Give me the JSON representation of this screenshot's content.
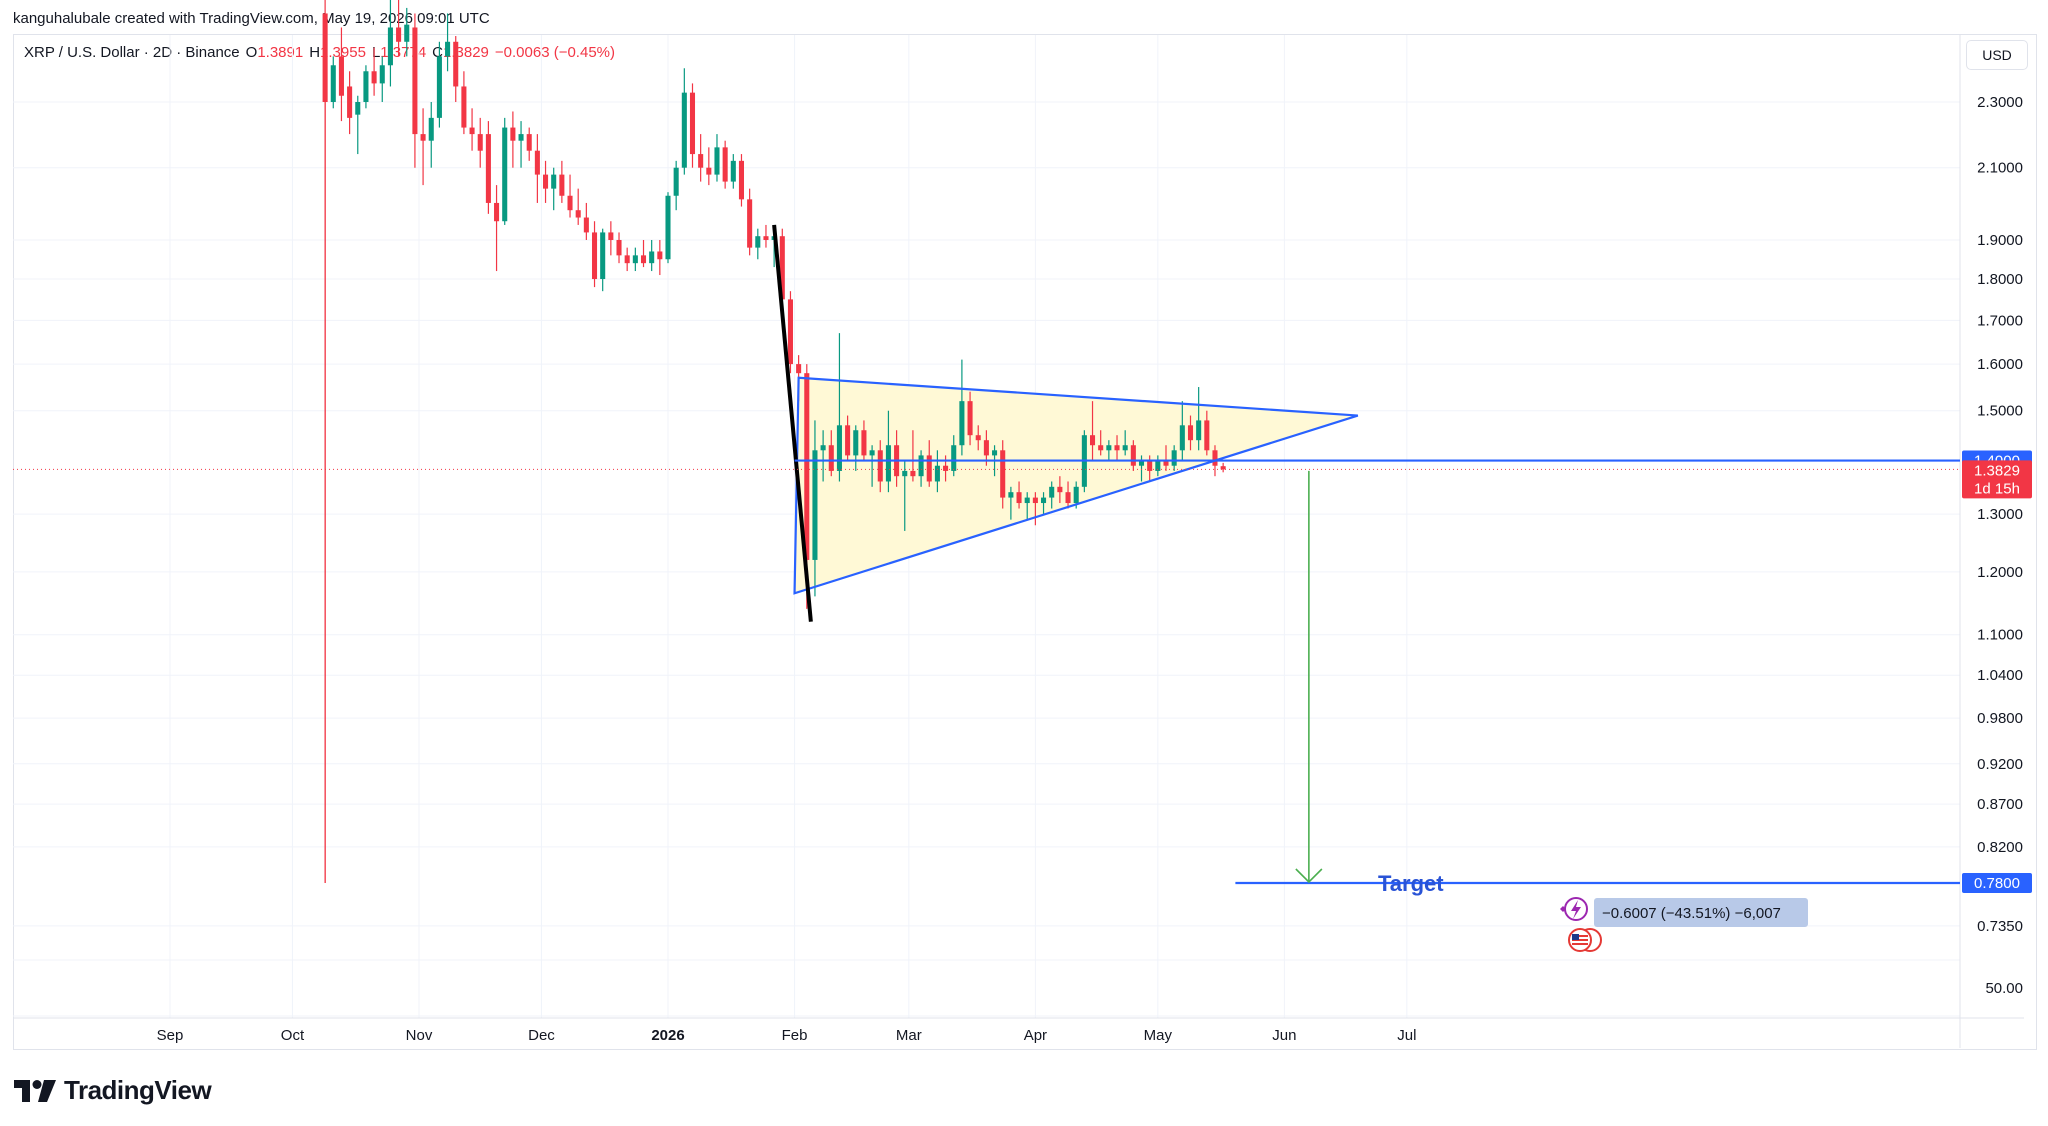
{
  "header": {
    "attribution": "kanguhalubale created with TradingView.com, May 19, 2026 09:01 UTC"
  },
  "legend": {
    "symbol": "XRP / U.S. Dollar · 2D · Binance",
    "open_label": "O",
    "open": "1.3891",
    "high_label": "H",
    "high": "1.3955",
    "low_label": "L",
    "low": "1.3774",
    "close_label": "C",
    "close": "1.3829",
    "change": "−0.0063 (−0.45%)"
  },
  "currency": "USD",
  "logo_text": "TradingView",
  "colors": {
    "up": "#089981",
    "down": "#f23645",
    "triangle_line": "#2962ff",
    "triangle_fill": "#fff9d6",
    "arrow": "#4caf50",
    "target_text": "#2953d6"
  },
  "icons": [
    "tradingview-logo-icon",
    "lightning-event-icon",
    "us-flag-icon"
  ],
  "chart_data": {
    "type": "candlestick",
    "symbol": "XRP / U.S. Dollar",
    "interval": "2D",
    "exchange": "Binance",
    "y_scale": "log",
    "grid": true,
    "x_axis_labels": [
      "Sep",
      "Oct",
      "Nov",
      "Dec",
      "2026",
      "Feb",
      "Mar",
      "Apr",
      "May",
      "Jun",
      "Jul"
    ],
    "y_axis_labels": [
      "2.3000",
      "2.1000",
      "1.9000",
      "1.8000",
      "1.7000",
      "1.6000",
      "1.5000",
      "1.3000",
      "1.2000",
      "1.1000",
      "1.0400",
      "0.9800",
      "0.9200",
      "0.8700",
      "0.8200",
      "0.7350",
      "50.00"
    ],
    "price_tags": [
      {
        "value": "1.4000",
        "kind": "level"
      },
      {
        "value": "1.3829",
        "kind": "last_price",
        "countdown": "1d 15h"
      },
      {
        "value": "0.7800",
        "kind": "target"
      }
    ],
    "annotation_target": "Target",
    "measure_label": "−0.6007 (−43.51%) −6,007",
    "candles": [
      {
        "d": "2025-10-09",
        "o": 2.6,
        "h": 2.7,
        "l": 0.78,
        "c": 2.3
      },
      {
        "d": "2025-10-11",
        "o": 2.3,
        "h": 2.45,
        "l": 2.28,
        "c": 2.42
      },
      {
        "d": "2025-10-13",
        "o": 2.45,
        "h": 2.55,
        "l": 2.24,
        "c": 2.32
      },
      {
        "d": "2025-10-15",
        "o": 2.35,
        "h": 2.4,
        "l": 2.2,
        "c": 2.25
      },
      {
        "d": "2025-10-17",
        "o": 2.26,
        "h": 2.32,
        "l": 2.14,
        "c": 2.3
      },
      {
        "d": "2025-10-19",
        "o": 2.3,
        "h": 2.42,
        "l": 2.28,
        "c": 2.4
      },
      {
        "d": "2025-10-21",
        "o": 2.4,
        "h": 2.48,
        "l": 2.32,
        "c": 2.36
      },
      {
        "d": "2025-10-23",
        "o": 2.36,
        "h": 2.45,
        "l": 2.3,
        "c": 2.42
      },
      {
        "d": "2025-10-25",
        "o": 2.42,
        "h": 2.65,
        "l": 2.35,
        "c": 2.55
      },
      {
        "d": "2025-10-27",
        "o": 2.55,
        "h": 2.7,
        "l": 2.45,
        "c": 2.5
      },
      {
        "d": "2025-10-29",
        "o": 2.5,
        "h": 2.62,
        "l": 2.45,
        "c": 2.56
      },
      {
        "d": "2025-10-31",
        "o": 2.55,
        "h": 2.6,
        "l": 2.1,
        "c": 2.2
      },
      {
        "d": "2025-11-02",
        "o": 2.2,
        "h": 2.28,
        "l": 2.05,
        "c": 2.18
      },
      {
        "d": "2025-11-04",
        "o": 2.18,
        "h": 2.3,
        "l": 2.1,
        "c": 2.25
      },
      {
        "d": "2025-11-06",
        "o": 2.25,
        "h": 2.5,
        "l": 2.22,
        "c": 2.45
      },
      {
        "d": "2025-11-08",
        "o": 2.45,
        "h": 2.6,
        "l": 2.4,
        "c": 2.5
      },
      {
        "d": "2025-11-10",
        "o": 2.5,
        "h": 2.52,
        "l": 2.3,
        "c": 2.35
      },
      {
        "d": "2025-11-12",
        "o": 2.35,
        "h": 2.4,
        "l": 2.2,
        "c": 2.22
      },
      {
        "d": "2025-11-14",
        "o": 2.22,
        "h": 2.28,
        "l": 2.15,
        "c": 2.2
      },
      {
        "d": "2025-11-16",
        "o": 2.2,
        "h": 2.25,
        "l": 2.1,
        "c": 2.15
      },
      {
        "d": "2025-11-18",
        "o": 2.2,
        "h": 2.24,
        "l": 1.97,
        "c": 2.0
      },
      {
        "d": "2025-11-20",
        "o": 2.0,
        "h": 2.05,
        "l": 1.82,
        "c": 1.95
      },
      {
        "d": "2025-11-22",
        "o": 1.95,
        "h": 2.25,
        "l": 1.94,
        "c": 2.22
      },
      {
        "d": "2025-11-24",
        "o": 2.22,
        "h": 2.27,
        "l": 2.1,
        "c": 2.18
      },
      {
        "d": "2025-11-26",
        "o": 2.18,
        "h": 2.24,
        "l": 2.1,
        "c": 2.2
      },
      {
        "d": "2025-11-28",
        "o": 2.2,
        "h": 2.22,
        "l": 2.12,
        "c": 2.15
      },
      {
        "d": "2025-11-30",
        "o": 2.15,
        "h": 2.2,
        "l": 2.0,
        "c": 2.08
      },
      {
        "d": "2025-12-02",
        "o": 2.08,
        "h": 2.12,
        "l": 2.0,
        "c": 2.04
      },
      {
        "d": "2025-12-04",
        "o": 2.04,
        "h": 2.1,
        "l": 1.98,
        "c": 2.08
      },
      {
        "d": "2025-12-06",
        "o": 2.08,
        "h": 2.12,
        "l": 2.0,
        "c": 2.02
      },
      {
        "d": "2025-12-08",
        "o": 2.02,
        "h": 2.08,
        "l": 1.96,
        "c": 1.98
      },
      {
        "d": "2025-12-10",
        "o": 1.98,
        "h": 2.04,
        "l": 1.94,
        "c": 1.96
      },
      {
        "d": "2025-12-12",
        "o": 1.96,
        "h": 2.0,
        "l": 1.9,
        "c": 1.92
      },
      {
        "d": "2025-12-14",
        "o": 1.92,
        "h": 1.95,
        "l": 1.78,
        "c": 1.8
      },
      {
        "d": "2025-12-16",
        "o": 1.8,
        "h": 1.93,
        "l": 1.77,
        "c": 1.92
      },
      {
        "d": "2025-12-18",
        "o": 1.92,
        "h": 1.95,
        "l": 1.86,
        "c": 1.9
      },
      {
        "d": "2025-12-20",
        "o": 1.9,
        "h": 1.92,
        "l": 1.84,
        "c": 1.86
      },
      {
        "d": "2025-12-22",
        "o": 1.86,
        "h": 1.88,
        "l": 1.82,
        "c": 1.84
      },
      {
        "d": "2025-12-24",
        "o": 1.84,
        "h": 1.88,
        "l": 1.82,
        "c": 1.86
      },
      {
        "d": "2025-12-26",
        "o": 1.86,
        "h": 1.9,
        "l": 1.83,
        "c": 1.84
      },
      {
        "d": "2025-12-28",
        "o": 1.84,
        "h": 1.9,
        "l": 1.82,
        "c": 1.87
      },
      {
        "d": "2025-12-30",
        "o": 1.87,
        "h": 1.9,
        "l": 1.81,
        "c": 1.85
      },
      {
        "d": "2026-01-01",
        "o": 1.85,
        "h": 2.03,
        "l": 1.84,
        "c": 2.02
      },
      {
        "d": "2026-01-03",
        "o": 2.02,
        "h": 2.12,
        "l": 1.98,
        "c": 2.1
      },
      {
        "d": "2026-01-05",
        "o": 2.1,
        "h": 2.41,
        "l": 2.08,
        "c": 2.33
      },
      {
        "d": "2026-01-07",
        "o": 2.33,
        "h": 2.36,
        "l": 2.1,
        "c": 2.14
      },
      {
        "d": "2026-01-09",
        "o": 2.14,
        "h": 2.2,
        "l": 2.06,
        "c": 2.1
      },
      {
        "d": "2026-01-11",
        "o": 2.1,
        "h": 2.16,
        "l": 2.05,
        "c": 2.08
      },
      {
        "d": "2026-01-13",
        "o": 2.08,
        "h": 2.2,
        "l": 2.06,
        "c": 2.16
      },
      {
        "d": "2026-01-15",
        "o": 2.16,
        "h": 2.18,
        "l": 2.04,
        "c": 2.06
      },
      {
        "d": "2026-01-17",
        "o": 2.06,
        "h": 2.14,
        "l": 2.04,
        "c": 2.12
      },
      {
        "d": "2026-01-19",
        "o": 2.12,
        "h": 2.14,
        "l": 1.99,
        "c": 2.01
      },
      {
        "d": "2026-01-21",
        "o": 2.01,
        "h": 2.04,
        "l": 1.86,
        "c": 1.88
      },
      {
        "d": "2026-01-23",
        "o": 1.88,
        "h": 1.93,
        "l": 1.85,
        "c": 1.91
      },
      {
        "d": "2026-01-25",
        "o": 1.91,
        "h": 1.94,
        "l": 1.88,
        "c": 1.9
      },
      {
        "d": "2026-01-27",
        "o": 1.9,
        "h": 1.94,
        "l": 1.83,
        "c": 1.91
      },
      {
        "d": "2026-01-29",
        "o": 1.91,
        "h": 1.93,
        "l": 1.73,
        "c": 1.75
      },
      {
        "d": "2026-01-31",
        "o": 1.75,
        "h": 1.77,
        "l": 1.58,
        "c": 1.6
      },
      {
        "d": "2026-02-02",
        "o": 1.6,
        "h": 1.62,
        "l": 1.52,
        "c": 1.58
      },
      {
        "d": "2026-02-04",
        "o": 1.58,
        "h": 1.6,
        "l": 1.14,
        "c": 1.22
      },
      {
        "d": "2026-02-06",
        "o": 1.22,
        "h": 1.48,
        "l": 1.16,
        "c": 1.42
      },
      {
        "d": "2026-02-08",
        "o": 1.42,
        "h": 1.46,
        "l": 1.36,
        "c": 1.43
      },
      {
        "d": "2026-02-10",
        "o": 1.43,
        "h": 1.46,
        "l": 1.37,
        "c": 1.38
      },
      {
        "d": "2026-02-12",
        "o": 1.38,
        "h": 1.67,
        "l": 1.36,
        "c": 1.47
      },
      {
        "d": "2026-02-14",
        "o": 1.47,
        "h": 1.49,
        "l": 1.4,
        "c": 1.41
      },
      {
        "d": "2026-02-16",
        "o": 1.41,
        "h": 1.47,
        "l": 1.38,
        "c": 1.46
      },
      {
        "d": "2026-02-18",
        "o": 1.46,
        "h": 1.48,
        "l": 1.4,
        "c": 1.41
      },
      {
        "d": "2026-02-20",
        "o": 1.41,
        "h": 1.43,
        "l": 1.35,
        "c": 1.42
      },
      {
        "d": "2026-02-22",
        "o": 1.42,
        "h": 1.44,
        "l": 1.34,
        "c": 1.36
      },
      {
        "d": "2026-02-24",
        "o": 1.36,
        "h": 1.5,
        "l": 1.34,
        "c": 1.43
      },
      {
        "d": "2026-02-26",
        "o": 1.43,
        "h": 1.46,
        "l": 1.35,
        "c": 1.37
      },
      {
        "d": "2026-02-28",
        "o": 1.37,
        "h": 1.4,
        "l": 1.27,
        "c": 1.38
      },
      {
        "d": "2026-03-02",
        "o": 1.38,
        "h": 1.46,
        "l": 1.36,
        "c": 1.37
      },
      {
        "d": "2026-03-04",
        "o": 1.37,
        "h": 1.42,
        "l": 1.35,
        "c": 1.41
      },
      {
        "d": "2026-03-06",
        "o": 1.41,
        "h": 1.44,
        "l": 1.35,
        "c": 1.36
      },
      {
        "d": "2026-03-08",
        "o": 1.36,
        "h": 1.42,
        "l": 1.34,
        "c": 1.39
      },
      {
        "d": "2026-03-10",
        "o": 1.39,
        "h": 1.41,
        "l": 1.36,
        "c": 1.38
      },
      {
        "d": "2026-03-12",
        "o": 1.38,
        "h": 1.45,
        "l": 1.37,
        "c": 1.43
      },
      {
        "d": "2026-03-14",
        "o": 1.43,
        "h": 1.61,
        "l": 1.41,
        "c": 1.52
      },
      {
        "d": "2026-03-16",
        "o": 1.52,
        "h": 1.54,
        "l": 1.43,
        "c": 1.45
      },
      {
        "d": "2026-03-18",
        "o": 1.45,
        "h": 1.47,
        "l": 1.42,
        "c": 1.44
      },
      {
        "d": "2026-03-20",
        "o": 1.44,
        "h": 1.46,
        "l": 1.39,
        "c": 1.41
      },
      {
        "d": "2026-03-22",
        "o": 1.41,
        "h": 1.43,
        "l": 1.37,
        "c": 1.42
      },
      {
        "d": "2026-03-24",
        "o": 1.42,
        "h": 1.44,
        "l": 1.31,
        "c": 1.33
      },
      {
        "d": "2026-03-26",
        "o": 1.33,
        "h": 1.35,
        "l": 1.29,
        "c": 1.34
      },
      {
        "d": "2026-03-28",
        "o": 1.34,
        "h": 1.36,
        "l": 1.31,
        "c": 1.32
      },
      {
        "d": "2026-03-30",
        "o": 1.32,
        "h": 1.34,
        "l": 1.29,
        "c": 1.33
      },
      {
        "d": "2026-04-01",
        "o": 1.33,
        "h": 1.34,
        "l": 1.28,
        "c": 1.32
      },
      {
        "d": "2026-04-03",
        "o": 1.32,
        "h": 1.34,
        "l": 1.3,
        "c": 1.33
      },
      {
        "d": "2026-04-05",
        "o": 1.33,
        "h": 1.36,
        "l": 1.31,
        "c": 1.35
      },
      {
        "d": "2026-04-07",
        "o": 1.35,
        "h": 1.37,
        "l": 1.32,
        "c": 1.34
      },
      {
        "d": "2026-04-09",
        "o": 1.34,
        "h": 1.36,
        "l": 1.31,
        "c": 1.32
      },
      {
        "d": "2026-04-11",
        "o": 1.32,
        "h": 1.36,
        "l": 1.31,
        "c": 1.35
      },
      {
        "d": "2026-04-13",
        "o": 1.35,
        "h": 1.46,
        "l": 1.34,
        "c": 1.45
      },
      {
        "d": "2026-04-15",
        "o": 1.45,
        "h": 1.52,
        "l": 1.4,
        "c": 1.43
      },
      {
        "d": "2026-04-17",
        "o": 1.43,
        "h": 1.46,
        "l": 1.41,
        "c": 1.42
      },
      {
        "d": "2026-04-19",
        "o": 1.42,
        "h": 1.44,
        "l": 1.4,
        "c": 1.43
      },
      {
        "d": "2026-04-21",
        "o": 1.43,
        "h": 1.45,
        "l": 1.4,
        "c": 1.42
      },
      {
        "d": "2026-04-23",
        "o": 1.42,
        "h": 1.46,
        "l": 1.41,
        "c": 1.43
      },
      {
        "d": "2026-04-25",
        "o": 1.43,
        "h": 1.44,
        "l": 1.38,
        "c": 1.39
      },
      {
        "d": "2026-04-27",
        "o": 1.39,
        "h": 1.41,
        "l": 1.36,
        "c": 1.4
      },
      {
        "d": "2026-04-29",
        "o": 1.4,
        "h": 1.41,
        "l": 1.36,
        "c": 1.38
      },
      {
        "d": "2026-05-01",
        "o": 1.38,
        "h": 1.41,
        "l": 1.37,
        "c": 1.4
      },
      {
        "d": "2026-05-03",
        "o": 1.4,
        "h": 1.43,
        "l": 1.38,
        "c": 1.39
      },
      {
        "d": "2026-05-05",
        "o": 1.39,
        "h": 1.43,
        "l": 1.38,
        "c": 1.42
      },
      {
        "d": "2026-05-07",
        "o": 1.42,
        "h": 1.52,
        "l": 1.4,
        "c": 1.47
      },
      {
        "d": "2026-05-09",
        "o": 1.47,
        "h": 1.49,
        "l": 1.42,
        "c": 1.44
      },
      {
        "d": "2026-05-11",
        "o": 1.44,
        "h": 1.55,
        "l": 1.42,
        "c": 1.48
      },
      {
        "d": "2026-05-13",
        "o": 1.48,
        "h": 1.5,
        "l": 1.41,
        "c": 1.42
      },
      {
        "d": "2026-05-15",
        "o": 1.42,
        "h": 1.43,
        "l": 1.37,
        "c": 1.39
      },
      {
        "d": "2026-05-17",
        "o": 1.3891,
        "h": 1.3955,
        "l": 1.3774,
        "c": 1.3829
      }
    ],
    "drawings": {
      "triangle": {
        "apex": [
          "2026-06-19",
          1.49
        ],
        "top_left": [
          "2026-02-02",
          1.57
        ],
        "bottom_left": [
          "2026-02-01",
          1.165
        ]
      },
      "trendline_drop": {
        "from": [
          "2026-01-27",
          1.94
        ],
        "to": [
          "2026-02-05",
          1.12
        ]
      },
      "level_line": {
        "from": [
          "2026-02-01",
          1.4
        ],
        "to": "right",
        "value": 1.4
      },
      "target_line": {
        "from": [
          "2026-05-20",
          0.78
        ],
        "to": "right",
        "value": 0.78
      },
      "down_arrow": {
        "x": "2026-06-07",
        "from": 1.38,
        "to": 0.78
      },
      "oct_wick_line_value": 0.78
    }
  }
}
